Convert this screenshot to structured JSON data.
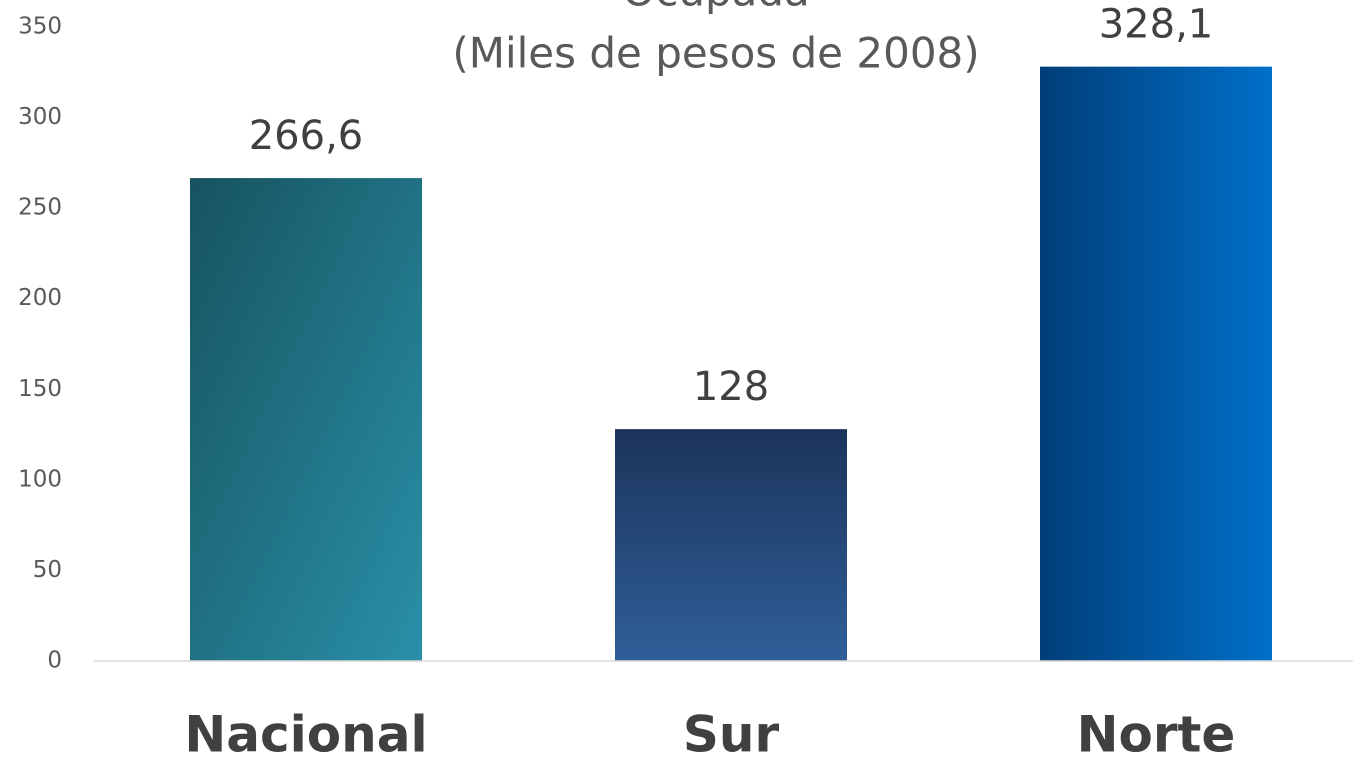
{
  "chart_data": {
    "type": "bar",
    "title": "Ocupada",
    "subtitle": "(Miles de pesos de 2008)",
    "categories": [
      "Nacional",
      "Sur",
      "Norte"
    ],
    "values": [
      266.6,
      128,
      328.1
    ],
    "value_labels": [
      "266,6",
      "128",
      "328,1"
    ],
    "colors": [
      [
        "#17535f",
        "#2990a8"
      ],
      [
        "#1c345b",
        "#2f5f99"
      ],
      [
        "#003e78",
        "#0070c9"
      ]
    ],
    "ylim": [
      0,
      350
    ],
    "yticks": [
      0,
      50,
      100,
      150,
      200,
      250,
      300,
      350
    ],
    "grid": false
  }
}
